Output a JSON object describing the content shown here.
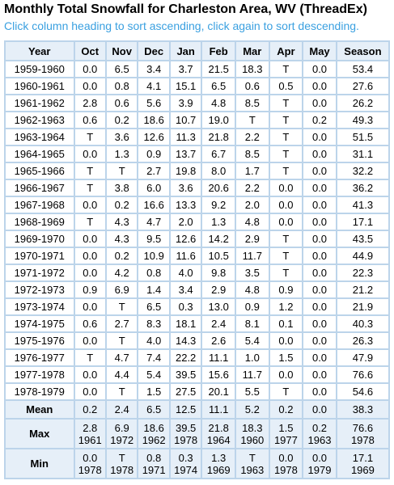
{
  "header": {
    "title": "Monthly Total Snowfall for Charleston Area, WV (ThreadEx)",
    "subtitle": "Click column heading to sort ascending, click again to sort descending."
  },
  "table": {
    "columns": [
      "Year",
      "Oct",
      "Nov",
      "Dec",
      "Jan",
      "Feb",
      "Mar",
      "Apr",
      "May",
      "Season"
    ],
    "rows": [
      [
        "1959-1960",
        "0.0",
        "6.5",
        "3.4",
        "3.7",
        "21.5",
        "18.3",
        "T",
        "0.0",
        "53.4"
      ],
      [
        "1960-1961",
        "0.0",
        "0.8",
        "4.1",
        "15.1",
        "6.5",
        "0.6",
        "0.5",
        "0.0",
        "27.6"
      ],
      [
        "1961-1962",
        "2.8",
        "0.6",
        "5.6",
        "3.9",
        "4.8",
        "8.5",
        "T",
        "0.0",
        "26.2"
      ],
      [
        "1962-1963",
        "0.6",
        "0.2",
        "18.6",
        "10.7",
        "19.0",
        "T",
        "T",
        "0.2",
        "49.3"
      ],
      [
        "1963-1964",
        "T",
        "3.6",
        "12.6",
        "11.3",
        "21.8",
        "2.2",
        "T",
        "0.0",
        "51.5"
      ],
      [
        "1964-1965",
        "0.0",
        "1.3",
        "0.9",
        "13.7",
        "6.7",
        "8.5",
        "T",
        "0.0",
        "31.1"
      ],
      [
        "1965-1966",
        "T",
        "T",
        "2.7",
        "19.8",
        "8.0",
        "1.7",
        "T",
        "0.0",
        "32.2"
      ],
      [
        "1966-1967",
        "T",
        "3.8",
        "6.0",
        "3.6",
        "20.6",
        "2.2",
        "0.0",
        "0.0",
        "36.2"
      ],
      [
        "1967-1968",
        "0.0",
        "0.2",
        "16.6",
        "13.3",
        "9.2",
        "2.0",
        "0.0",
        "0.0",
        "41.3"
      ],
      [
        "1968-1969",
        "T",
        "4.3",
        "4.7",
        "2.0",
        "1.3",
        "4.8",
        "0.0",
        "0.0",
        "17.1"
      ],
      [
        "1969-1970",
        "0.0",
        "4.3",
        "9.5",
        "12.6",
        "14.2",
        "2.9",
        "T",
        "0.0",
        "43.5"
      ],
      [
        "1970-1971",
        "0.0",
        "0.2",
        "10.9",
        "11.6",
        "10.5",
        "11.7",
        "T",
        "0.0",
        "44.9"
      ],
      [
        "1971-1972",
        "0.0",
        "4.2",
        "0.8",
        "4.0",
        "9.8",
        "3.5",
        "T",
        "0.0",
        "22.3"
      ],
      [
        "1972-1973",
        "0.9",
        "6.9",
        "1.4",
        "3.4",
        "2.9",
        "4.8",
        "0.9",
        "0.0",
        "21.2"
      ],
      [
        "1973-1974",
        "0.0",
        "T",
        "6.5",
        "0.3",
        "13.0",
        "0.9",
        "1.2",
        "0.0",
        "21.9"
      ],
      [
        "1974-1975",
        "0.6",
        "2.7",
        "8.3",
        "18.1",
        "2.4",
        "8.1",
        "0.1",
        "0.0",
        "40.3"
      ],
      [
        "1975-1976",
        "0.0",
        "T",
        "4.0",
        "14.3",
        "2.6",
        "5.4",
        "0.0",
        "0.0",
        "26.3"
      ],
      [
        "1976-1977",
        "T",
        "4.7",
        "7.4",
        "22.2",
        "11.1",
        "1.0",
        "1.5",
        "0.0",
        "47.9"
      ],
      [
        "1977-1978",
        "0.0",
        "4.4",
        "5.4",
        "39.5",
        "15.6",
        "11.7",
        "0.0",
        "0.0",
        "76.6"
      ],
      [
        "1978-1979",
        "0.0",
        "T",
        "1.5",
        "27.5",
        "20.1",
        "5.5",
        "T",
        "0.0",
        "54.6"
      ]
    ],
    "summary": {
      "mean": {
        "label": "Mean",
        "values": [
          "0.2",
          "2.4",
          "6.5",
          "12.5",
          "11.1",
          "5.2",
          "0.2",
          "0.0",
          "38.3"
        ]
      },
      "max": {
        "label": "Max",
        "values": [
          {
            "v": "2.8",
            "y": "1961"
          },
          {
            "v": "6.9",
            "y": "1972"
          },
          {
            "v": "18.6",
            "y": "1962"
          },
          {
            "v": "39.5",
            "y": "1978"
          },
          {
            "v": "21.8",
            "y": "1964"
          },
          {
            "v": "18.3",
            "y": "1960"
          },
          {
            "v": "1.5",
            "y": "1977"
          },
          {
            "v": "0.2",
            "y": "1963"
          },
          {
            "v": "76.6",
            "y": "1978"
          }
        ]
      },
      "min": {
        "label": "Min",
        "values": [
          {
            "v": "0.0",
            "y": "1978"
          },
          {
            "v": "T",
            "y": "1978"
          },
          {
            "v": "0.8",
            "y": "1971"
          },
          {
            "v": "0.3",
            "y": "1974"
          },
          {
            "v": "1.3",
            "y": "1969"
          },
          {
            "v": "T",
            "y": "1963"
          },
          {
            "v": "0.0",
            "y": "1978"
          },
          {
            "v": "0.0",
            "y": "1979"
          },
          {
            "v": "17.1",
            "y": "1969"
          }
        ]
      }
    }
  },
  "colors": {
    "title": "#000000",
    "subtitle": "#3aa0e0",
    "grid": "#bcd4ea",
    "header_bg": "#e6eff8",
    "cell_bg": "#ffffff"
  }
}
